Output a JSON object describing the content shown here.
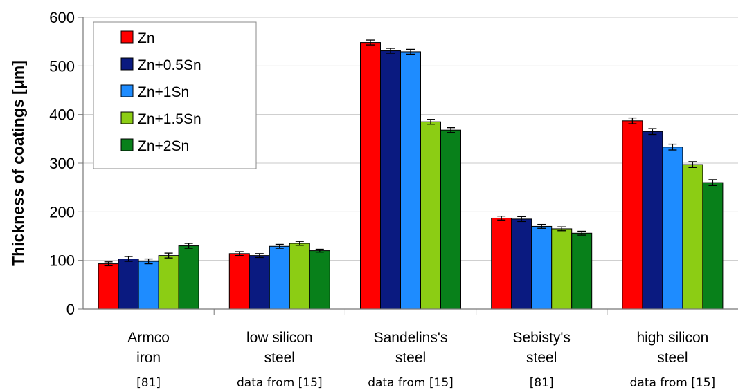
{
  "chart_data": {
    "type": "bar",
    "ylabel": "Thickness of coatings [μm]",
    "ylim": [
      0,
      600
    ],
    "yticks": [
      0,
      100,
      200,
      300,
      400,
      500,
      600
    ],
    "grid": true,
    "legend_position": "top-left",
    "categories": [
      {
        "lines": [
          "Armco",
          "iron"
        ],
        "source": "[81]"
      },
      {
        "lines": [
          "low silicon",
          "steel"
        ],
        "source": "data from [15]"
      },
      {
        "lines": [
          "Sandelins's",
          "steel"
        ],
        "source": "data from [15]"
      },
      {
        "lines": [
          "Sebisty's",
          "steel"
        ],
        "source": "[81]"
      },
      {
        "lines": [
          "high silicon",
          "steel"
        ],
        "source": "data from [15]"
      }
    ],
    "series": [
      {
        "name": "Zn",
        "color": "#ff0000",
        "values": [
          93,
          114,
          548,
          187,
          387
        ],
        "errors": [
          4,
          4,
          5,
          4,
          6
        ]
      },
      {
        "name": "Zn+0.5Sn",
        "color": "#0a1a80",
        "values": [
          103,
          110,
          531,
          185,
          365
        ],
        "errors": [
          5,
          4,
          5,
          5,
          6
        ]
      },
      {
        "name": "Zn+1Sn",
        "color": "#1e8cff",
        "values": [
          98,
          129,
          529,
          170,
          333
        ],
        "errors": [
          5,
          4,
          5,
          4,
          6
        ]
      },
      {
        "name": "Zn+1.5Sn",
        "color": "#8ccd14",
        "values": [
          110,
          135,
          385,
          165,
          297
        ],
        "errors": [
          5,
          4,
          5,
          4,
          6
        ]
      },
      {
        "name": "Zn+2Sn",
        "color": "#08801a",
        "values": [
          130,
          120,
          368,
          156,
          260
        ],
        "errors": [
          5,
          3,
          5,
          4,
          6
        ]
      }
    ]
  }
}
